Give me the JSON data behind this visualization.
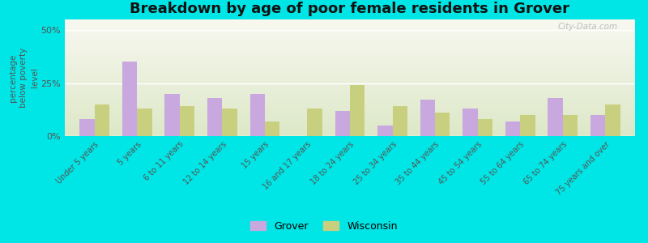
{
  "title": "Breakdown by age of poor female residents in Grover",
  "categories": [
    "Under 5 years",
    "5 years",
    "6 to 11 years",
    "12 to 14 years",
    "15 years",
    "16 and 17 years",
    "18 to 24 years",
    "25 to 34 years",
    "35 to 44 years",
    "45 to 54 years",
    "55 to 64 years",
    "65 to 74 years",
    "75 years and over"
  ],
  "grover": [
    8,
    35,
    20,
    18,
    20,
    0,
    12,
    5,
    17,
    13,
    7,
    18,
    10
  ],
  "wisconsin": [
    15,
    13,
    14,
    13,
    7,
    13,
    24,
    14,
    11,
    8,
    10,
    10,
    15
  ],
  "grover_color": "#c9a8e0",
  "wisconsin_color": "#c8d080",
  "background_color": "#00e5e5",
  "ylabel": "percentage\nbelow poverty\nlevel",
  "ylim": [
    0,
    55
  ],
  "yticks": [
    0,
    25,
    50
  ],
  "ytick_labels": [
    "0%",
    "25%",
    "50%"
  ],
  "legend_grover": "Grover",
  "legend_wisconsin": "Wisconsin",
  "title_fontsize": 13,
  "bar_width": 0.35,
  "watermark": "City-Data.com"
}
